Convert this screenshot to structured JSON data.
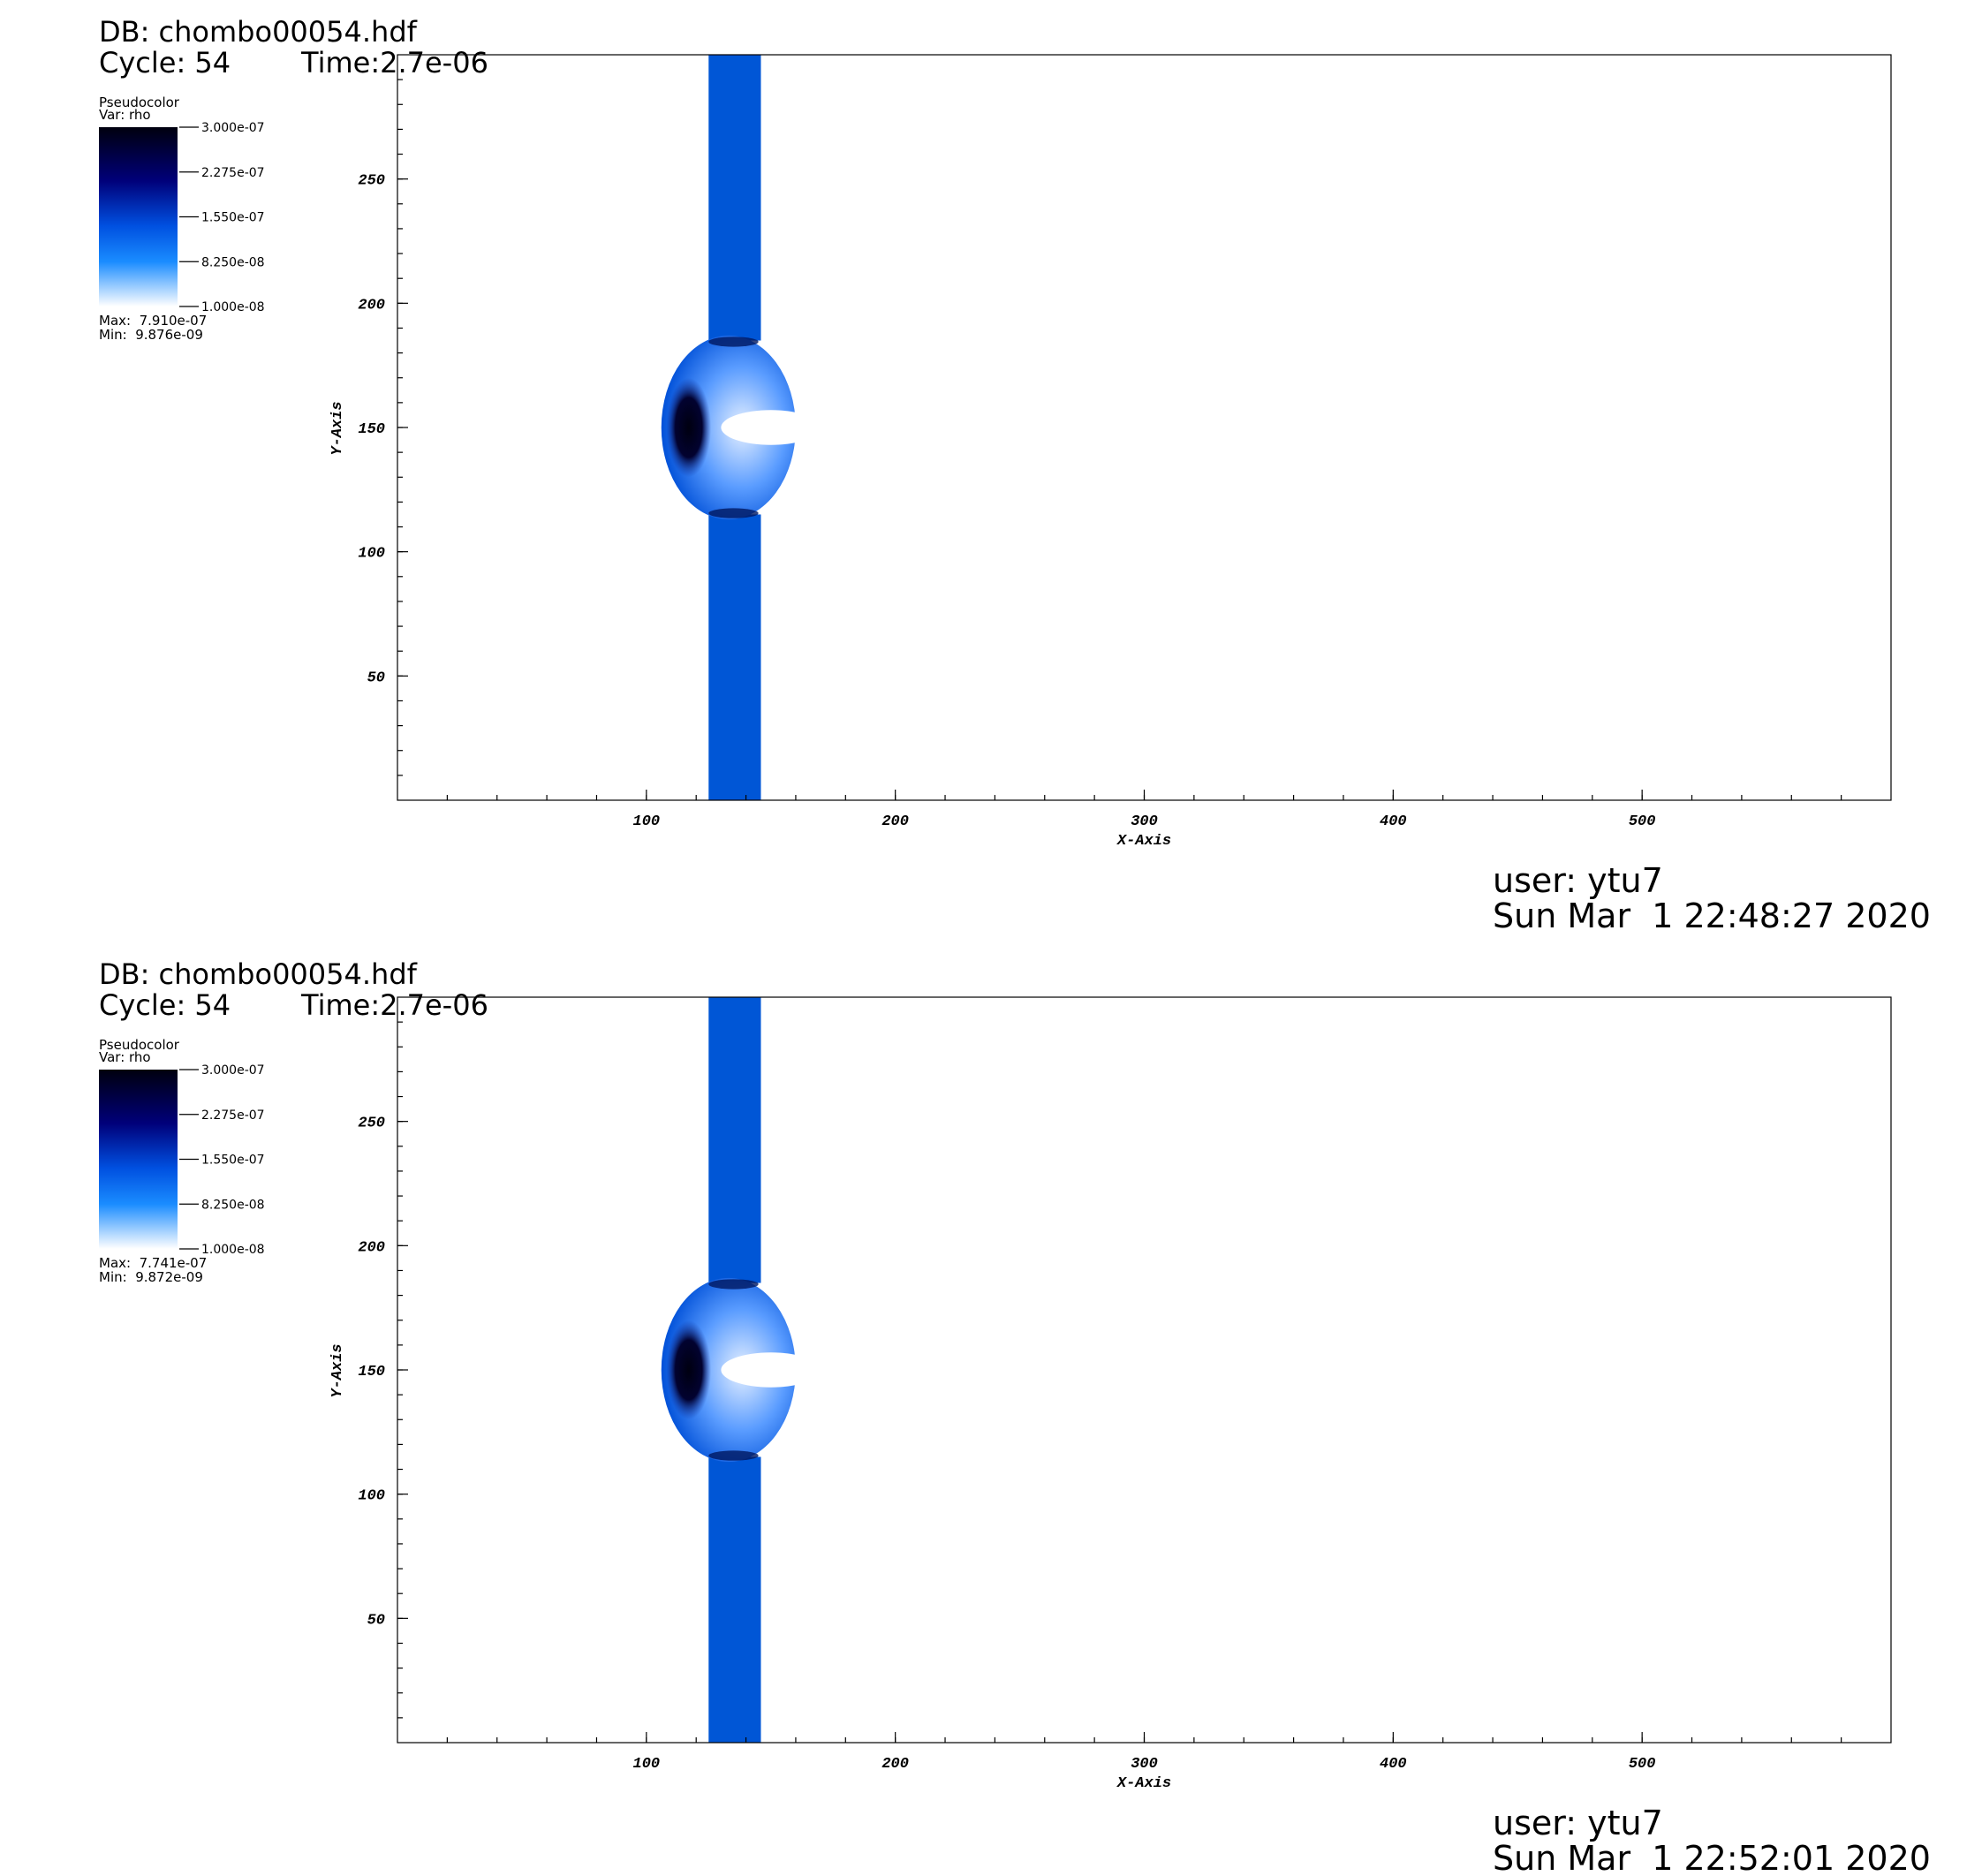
{
  "panels": [
    {
      "db": "DB: chombo00054.hdf",
      "cycle": "Cycle: 54",
      "time": "Time:2.7e-06",
      "legend": {
        "title": "Pseudocolor",
        "var": "Var: rho",
        "ticks": [
          {
            "value": 3e-07,
            "label": "3.000e-07"
          },
          {
            "value": 2.275e-07,
            "label": "2.275e-07"
          },
          {
            "value": 1.55e-07,
            "label": "1.550e-07"
          },
          {
            "value": 8.25e-08,
            "label": "8.250e-08"
          },
          {
            "value": 1e-08,
            "label": "1.000e-08"
          }
        ],
        "max": "Max:  7.910e-07",
        "min": "Min:  9.876e-09"
      },
      "x_label": "X-Axis",
      "y_label": "Y-Axis",
      "xlim": [
        0,
        600
      ],
      "ylim": [
        0,
        300
      ],
      "xticks": [
        100,
        200,
        300,
        400,
        500
      ],
      "yticks": [
        50,
        100,
        150,
        200,
        250
      ],
      "user": "user: ytu7",
      "date": "Sun Mar  1 22:48:27 2020"
    },
    {
      "db": "DB: chombo00054.hdf",
      "cycle": "Cycle: 54",
      "time": "Time:2.7e-06",
      "legend": {
        "title": "Pseudocolor",
        "var": "Var: rho",
        "ticks": [
          {
            "value": 3e-07,
            "label": "3.000e-07"
          },
          {
            "value": 2.275e-07,
            "label": "2.275e-07"
          },
          {
            "value": 1.55e-07,
            "label": "1.550e-07"
          },
          {
            "value": 8.25e-08,
            "label": "8.250e-08"
          },
          {
            "value": 1e-08,
            "label": "1.000e-08"
          }
        ],
        "max": "Max:  7.741e-07",
        "min": "Min:  9.872e-09"
      },
      "x_label": "X-Axis",
      "y_label": "Y-Axis",
      "xlim": [
        0,
        600
      ],
      "ylim": [
        0,
        300
      ],
      "xticks": [
        100,
        200,
        300,
        400,
        500
      ],
      "yticks": [
        50,
        100,
        150,
        200,
        250
      ],
      "user": "user: ytu7",
      "date": "Sun Mar  1 22:52:01 2020"
    }
  ]
}
